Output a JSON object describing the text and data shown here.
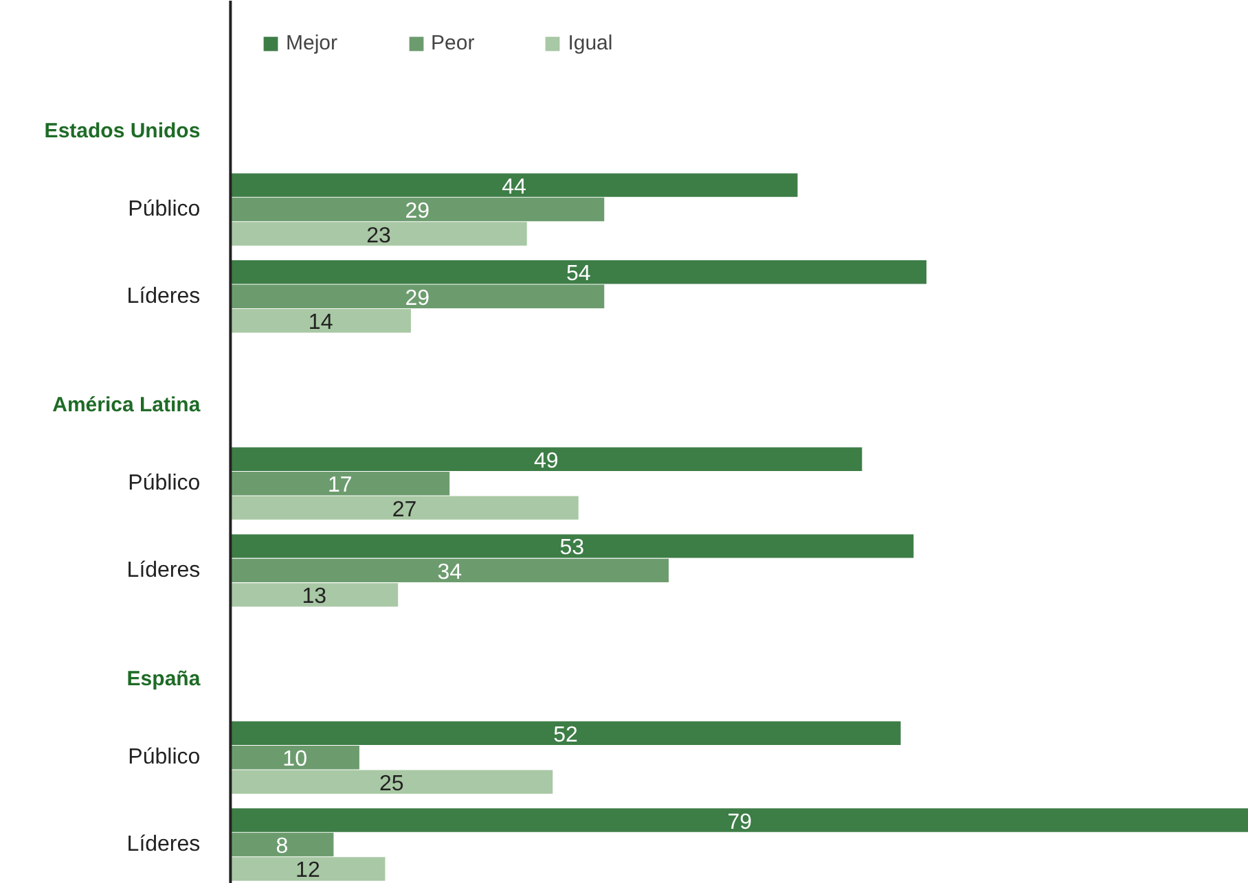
{
  "chart_data": {
    "type": "bar",
    "orientation": "horizontal",
    "categories": [
      "Estados Unidos",
      "Público",
      "Líderes",
      "América Latina",
      "Público",
      "Líderes",
      "España",
      "Público",
      "Líderes"
    ],
    "series": [
      {
        "name": "Mejor",
        "color": "#3d7d46",
        "values": [
          null,
          44,
          54,
          null,
          49,
          53,
          null,
          52,
          79
        ]
      },
      {
        "name": "Peor",
        "color": "#6c9c6e",
        "values": [
          null,
          29,
          29,
          null,
          17,
          34,
          null,
          10,
          8
        ]
      },
      {
        "name": "Igual",
        "color": "#a9c8a5",
        "values": [
          null,
          23,
          14,
          null,
          27,
          13,
          null,
          25,
          12
        ]
      }
    ],
    "data_labels": true,
    "legend": "top",
    "tick_labels": false,
    "grid": false
  }
}
